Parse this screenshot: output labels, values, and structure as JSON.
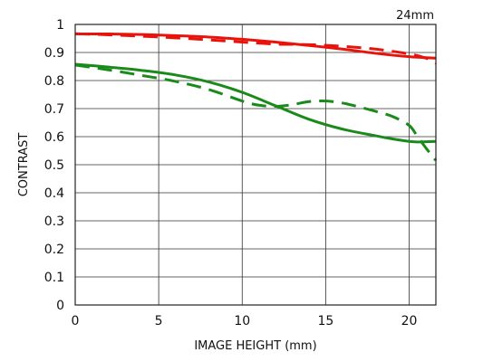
{
  "chart_data": {
    "type": "line",
    "focal_length_label": "24mm",
    "title": "",
    "xlabel": "IMAGE HEIGHT (mm)",
    "ylabel": "CONTRAST",
    "xlim": [
      0,
      21.6
    ],
    "ylim": [
      0,
      1
    ],
    "x_ticks": [
      "0",
      "5",
      "10",
      "15",
      "20"
    ],
    "y_ticks": [
      "0",
      "0.1",
      "0.2",
      "0.3",
      "0.4",
      "0.5",
      "0.6",
      "0.7",
      "0.8",
      "0.9",
      "1"
    ],
    "grid": true,
    "legend": "none",
    "series": [
      {
        "color": "#e8140c",
        "dash": "solid",
        "x": [
          0,
          2,
          4,
          6,
          8,
          10,
          12,
          14,
          16,
          18,
          20,
          21.6
        ],
        "y": [
          0.966,
          0.966,
          0.964,
          0.96,
          0.955,
          0.947,
          0.937,
          0.925,
          0.912,
          0.897,
          0.885,
          0.88
        ]
      },
      {
        "color": "#e8140c",
        "dash": "dashed",
        "x": [
          0,
          2,
          4,
          6,
          8,
          10,
          12,
          14,
          16,
          18,
          20,
          21,
          21.6
        ],
        "y": [
          0.967,
          0.963,
          0.958,
          0.952,
          0.945,
          0.937,
          0.93,
          0.928,
          0.922,
          0.912,
          0.895,
          0.88,
          0.862
        ]
      },
      {
        "color": "#1a8a1a",
        "dash": "solid",
        "x": [
          0,
          2,
          4,
          6,
          8,
          10,
          12,
          14,
          16,
          18,
          19,
          20,
          20.5,
          21,
          21.6
        ],
        "y": [
          0.858,
          0.848,
          0.836,
          0.82,
          0.795,
          0.758,
          0.71,
          0.662,
          0.627,
          0.603,
          0.592,
          0.583,
          0.581,
          0.582,
          0.583
        ]
      },
      {
        "color": "#1a8a1a",
        "dash": "dashed",
        "x": [
          0,
          2,
          4,
          6,
          8,
          10,
          11,
          12,
          13,
          14,
          15,
          16,
          17,
          18,
          19,
          20,
          20.5,
          21,
          21.6
        ],
        "y": [
          0.855,
          0.838,
          0.818,
          0.797,
          0.768,
          0.727,
          0.712,
          0.708,
          0.714,
          0.725,
          0.727,
          0.72,
          0.706,
          0.69,
          0.672,
          0.64,
          0.6,
          0.56,
          0.515
        ]
      }
    ]
  }
}
